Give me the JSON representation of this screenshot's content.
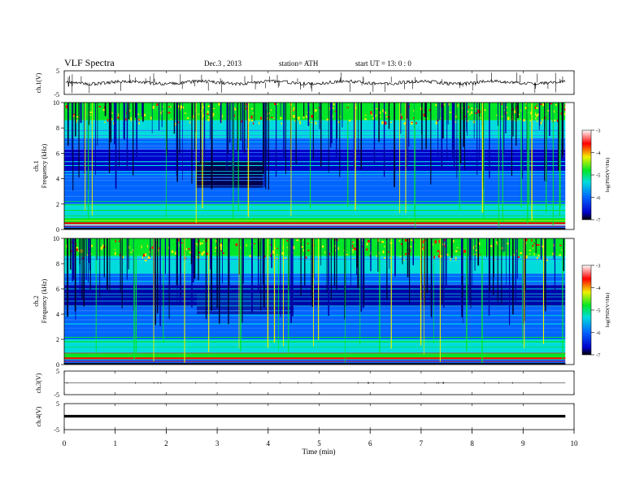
{
  "header": {
    "title": "VLF  Spectra",
    "date": "Dec.3  , 2013",
    "station": "station= ATH",
    "start": "start  UT  =    13: 0  : 0"
  },
  "chart_data": [
    {
      "type": "line",
      "panel": "ch1-waveform",
      "ylabel": "ch.1(V)",
      "yticks": [
        "5",
        "-5"
      ],
      "ylim": [
        -5,
        5
      ],
      "xlim": [
        0,
        10
      ]
    },
    {
      "type": "heatmap",
      "panel": "ch1-spectrogram",
      "ylabel": "Frequency  (kHz)",
      "channel_label": "ch.1",
      "yticks": [
        "0",
        "2",
        "4",
        "6",
        "8",
        "10"
      ],
      "ylim": [
        0,
        10
      ],
      "xlim": [
        0,
        10
      ],
      "colorbar": {
        "label": "log(PSD(V²/Hz)",
        "ticks": [
          "-3",
          "-4",
          "-5",
          "-6",
          "-7"
        ],
        "range": [
          -7,
          -3
        ]
      }
    },
    {
      "type": "heatmap",
      "panel": "ch2-spectrogram",
      "ylabel": "Frequency  (kHz)",
      "channel_label": "ch.2",
      "yticks": [
        "0",
        "2",
        "4",
        "6",
        "8",
        "10"
      ],
      "ylim": [
        0,
        10
      ],
      "xlim": [
        0,
        10
      ],
      "colorbar": {
        "label": "log(PSD(V²/Hz)",
        "ticks": [
          "-3",
          "-4",
          "-5",
          "-6",
          "-7"
        ],
        "range": [
          -7,
          -3
        ]
      }
    },
    {
      "type": "line",
      "panel": "ch3-waveform",
      "ylabel": "ch.3(V)",
      "yticks": [
        "5",
        "-5"
      ],
      "ylim": [
        -5,
        5
      ],
      "xlim": [
        0,
        10
      ]
    },
    {
      "type": "line",
      "panel": "ch4-waveform",
      "ylabel": "ch.4(V)",
      "yticks": [
        "5",
        "-5"
      ],
      "ylim": [
        -5,
        5
      ],
      "xlim": [
        0,
        10
      ]
    }
  ],
  "x_axis": {
    "label": "Time  (min)",
    "ticks": [
      "0",
      "1",
      "2",
      "3",
      "4",
      "5",
      "6",
      "7",
      "8",
      "9",
      "10"
    ],
    "range": [
      0,
      10
    ],
    "data_end": 9.83
  },
  "colors": {
    "colormap": [
      "#000000",
      "#0000c8",
      "#0064ff",
      "#00dcdc",
      "#00e628",
      "#f0f000",
      "#ff0000",
      "#ffffff"
    ],
    "axis": "#000000",
    "trace": "#000000"
  }
}
